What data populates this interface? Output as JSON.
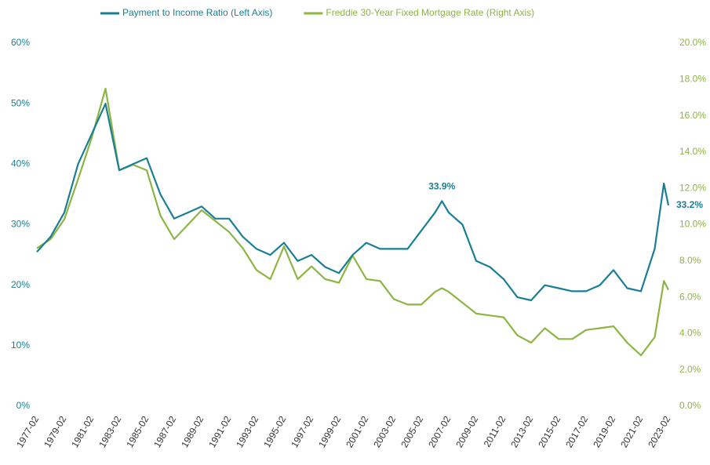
{
  "chart_data": {
    "type": "line",
    "x": [
      "1977-02",
      "1978-02",
      "1979-02",
      "1980-02",
      "1981-02",
      "1982-02",
      "1983-02",
      "1984-02",
      "1985-02",
      "1986-02",
      "1987-02",
      "1988-02",
      "1989-02",
      "1990-02",
      "1991-02",
      "1992-02",
      "1993-02",
      "1994-02",
      "1995-02",
      "1996-02",
      "1997-02",
      "1998-02",
      "1999-02",
      "2000-02",
      "2001-02",
      "2002-02",
      "2003-02",
      "2004-02",
      "2005-02",
      "2006-02",
      "2006-08",
      "2007-02",
      "2008-02",
      "2009-02",
      "2010-02",
      "2011-02",
      "2012-02",
      "2013-02",
      "2014-02",
      "2015-02",
      "2016-02",
      "2017-02",
      "2018-02",
      "2019-02",
      "2020-02",
      "2021-02",
      "2022-02",
      "2022-10",
      "2023-02"
    ],
    "series": [
      {
        "name": "Payment to Income Ratio (Left Axis)",
        "color": "#1a7f95",
        "axis": "y",
        "values": [
          25.5,
          28,
          32,
          40,
          45,
          50,
          39,
          40,
          41,
          35,
          31,
          32,
          33,
          31,
          31,
          28,
          26,
          25,
          27,
          24,
          25,
          23,
          22,
          25,
          27,
          26,
          26,
          26,
          29,
          32,
          33.9,
          32,
          30,
          24,
          23,
          21,
          18,
          17.5,
          20,
          19.5,
          19,
          19,
          20,
          22.5,
          19.5,
          19,
          26,
          36.8,
          33.2
        ]
      },
      {
        "name": "Freddie 30-Year Fixed Mortgage Rate (Right Axis)",
        "color": "#8cb542",
        "axis": "y2",
        "values": [
          8.7,
          9.2,
          10.3,
          12.5,
          14.8,
          17.5,
          13.0,
          13.3,
          13.0,
          10.5,
          9.2,
          10.0,
          10.8,
          10.2,
          9.6,
          8.7,
          7.5,
          7.0,
          8.8,
          7.0,
          7.7,
          7.0,
          6.8,
          8.3,
          7.0,
          6.9,
          5.9,
          5.6,
          5.6,
          6.3,
          6.5,
          6.3,
          5.7,
          5.1,
          5.0,
          4.9,
          3.9,
          3.5,
          4.3,
          3.7,
          3.7,
          4.2,
          4.3,
          4.4,
          3.5,
          2.8,
          3.8,
          6.9,
          6.4
        ]
      }
    ],
    "annotations": [
      {
        "text": "33.9%",
        "x": "2006-08",
        "value": 33.9
      },
      {
        "text": "33.2%",
        "x": "2023-02",
        "value": 33.2
      }
    ],
    "xticks": [
      "1977-02",
      "1979-02",
      "1981-02",
      "1983-02",
      "1985-02",
      "1987-02",
      "1989-02",
      "1991-02",
      "1993-02",
      "1995-02",
      "1997-02",
      "1999-02",
      "2001-02",
      "2003-02",
      "2005-02",
      "2007-02",
      "2009-02",
      "2011-02",
      "2013-02",
      "2015-02",
      "2017-02",
      "2019-02",
      "2021-02",
      "2023-02"
    ],
    "ylim": [
      0,
      60
    ],
    "yticks": [
      {
        "value": 0,
        "label": "0%"
      },
      {
        "value": 10,
        "label": "10%"
      },
      {
        "value": 20,
        "label": "20%"
      },
      {
        "value": 30,
        "label": "30%"
      },
      {
        "value": 40,
        "label": "40%"
      },
      {
        "value": 50,
        "label": "50%"
      },
      {
        "value": 60,
        "label": "60%"
      }
    ],
    "y2lim": [
      0,
      20
    ],
    "y2ticks": [
      {
        "value": 0,
        "label": "0.0%"
      },
      {
        "value": 2,
        "label": "2.0%"
      },
      {
        "value": 4,
        "label": "4.0%"
      },
      {
        "value": 6,
        "label": "6.0%"
      },
      {
        "value": 8,
        "label": "8.0%"
      },
      {
        "value": 10,
        "label": "10.0%"
      },
      {
        "value": 12,
        "label": "12.0%"
      },
      {
        "value": 14,
        "label": "14.0%"
      },
      {
        "value": 16,
        "label": "16.0%"
      },
      {
        "value": 18,
        "label": "18.0%"
      },
      {
        "value": 20,
        "label": "20.0%"
      }
    ],
    "grid": false,
    "legend": "top"
  }
}
